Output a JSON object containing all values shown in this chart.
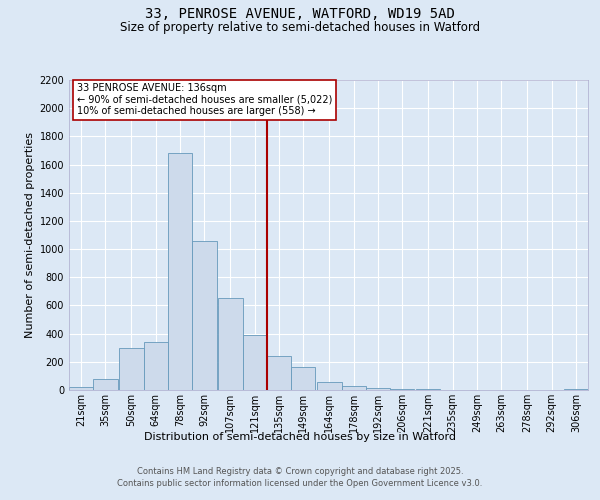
{
  "title1": "33, PENROSE AVENUE, WATFORD, WD19 5AD",
  "title2": "Size of property relative to semi-detached houses in Watford",
  "xlabel": "Distribution of semi-detached houses by size in Watford",
  "ylabel": "Number of semi-detached properties",
  "annotation_title": "33 PENROSE AVENUE: 136sqm",
  "annotation_line1": "← 90% of semi-detached houses are smaller (5,022)",
  "annotation_line2": "10% of semi-detached houses are larger (558) →",
  "footer1": "Contains HM Land Registry data © Crown copyright and database right 2025.",
  "footer2": "Contains public sector information licensed under the Open Government Licence v3.0.",
  "bar_labels": [
    "21sqm",
    "35sqm",
    "50sqm",
    "64sqm",
    "78sqm",
    "92sqm",
    "107sqm",
    "121sqm",
    "135sqm",
    "149sqm",
    "164sqm",
    "178sqm",
    "192sqm",
    "206sqm",
    "221sqm",
    "235sqm",
    "249sqm",
    "263sqm",
    "278sqm",
    "292sqm",
    "306sqm"
  ],
  "bar_edges": [
    21,
    35,
    50,
    64,
    78,
    92,
    107,
    121,
    135,
    149,
    164,
    178,
    192,
    206,
    221,
    235,
    249,
    263,
    278,
    292,
    306
  ],
  "bar_widths": [
    14,
    15,
    14,
    14,
    14,
    15,
    14,
    14,
    14,
    15,
    14,
    14,
    14,
    15,
    14,
    14,
    14,
    15,
    14,
    14,
    14
  ],
  "bar_heights": [
    20,
    80,
    300,
    340,
    1680,
    1060,
    650,
    390,
    240,
    160,
    60,
    25,
    15,
    8,
    4,
    2,
    1,
    1,
    0,
    0,
    10
  ],
  "bar_color": "#cddaeb",
  "bar_edge_color": "#6699bb",
  "vline_color": "#aa0000",
  "vline_x": 135,
  "ylim": [
    0,
    2200
  ],
  "yticks": [
    0,
    200,
    400,
    600,
    800,
    1000,
    1200,
    1400,
    1600,
    1800,
    2000,
    2200
  ],
  "bg_color": "#dce8f5",
  "plot_bg_color": "#dce8f5",
  "annotation_box_color": "#aa0000",
  "title_fontsize": 10,
  "subtitle_fontsize": 8.5,
  "axis_label_fontsize": 8,
  "tick_fontsize": 7,
  "annotation_fontsize": 7,
  "footer_fontsize": 6
}
